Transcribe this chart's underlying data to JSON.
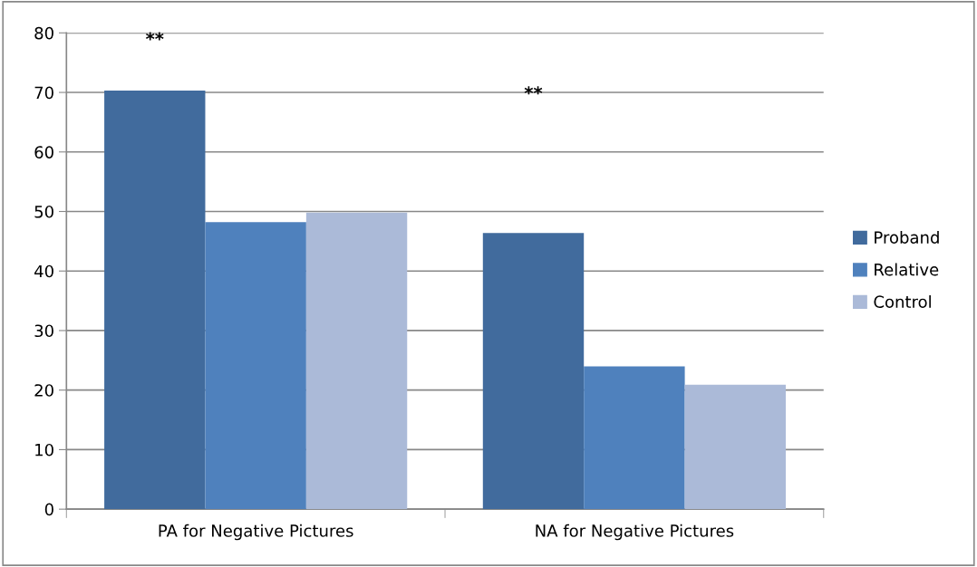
{
  "chart_data": {
    "type": "bar",
    "categories": [
      "PA for Negative Pictures",
      "NA for Negative Pictures"
    ],
    "series": [
      {
        "name": "Proband",
        "color": "#416b9d",
        "values": [
          70.3,
          46.4
        ]
      },
      {
        "name": "Relative",
        "color": "#4f81bd",
        "values": [
          48.2,
          24.0
        ]
      },
      {
        "name": "Control",
        "color": "#abbad8",
        "values": [
          49.8,
          20.9
        ]
      }
    ],
    "ylim": [
      0,
      80
    ],
    "yticks": [
      0,
      10,
      20,
      30,
      40,
      50,
      60,
      70,
      80
    ],
    "grid": "y",
    "legend": "right",
    "annotations": [
      "**",
      "**"
    ]
  }
}
